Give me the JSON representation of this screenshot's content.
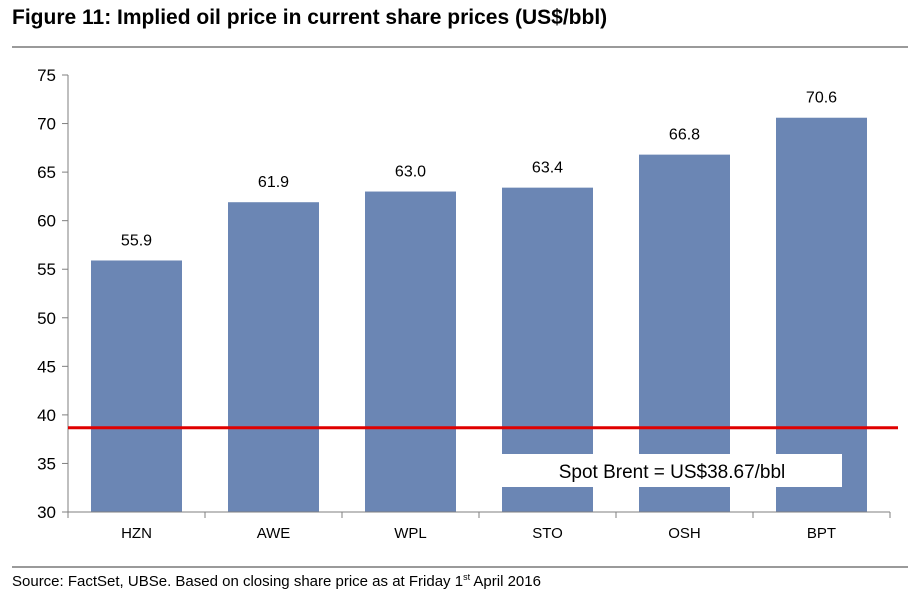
{
  "title": "Figure 11: Implied oil price in current share prices (US$/bbl)",
  "source": {
    "prefix": "Source:  FactSet, UBSe. Based on closing share price as at Friday 1",
    "superscript": "st",
    "suffix": " April 2016"
  },
  "chart_data": {
    "type": "bar",
    "title": "Implied oil price in current share prices (US$/bbl)",
    "categories": [
      "HZN",
      "AWE",
      "WPL",
      "STO",
      "OSH",
      "BPT"
    ],
    "values": [
      55.9,
      61.9,
      63.0,
      63.4,
      66.8,
      70.6
    ],
    "value_labels": [
      "55.9",
      "61.9",
      "63.0",
      "63.4",
      "66.8",
      "70.6"
    ],
    "ylim": [
      30,
      75
    ],
    "yticks": [
      30,
      35,
      40,
      45,
      50,
      55,
      60,
      65,
      70,
      75
    ],
    "xlabel": "",
    "ylabel": "",
    "grid": false,
    "reference_line": {
      "value": 38.67,
      "label": "Spot Brent = US$38.67/bbl",
      "color": "#e00000"
    },
    "bar_color": "#6b86b4"
  }
}
